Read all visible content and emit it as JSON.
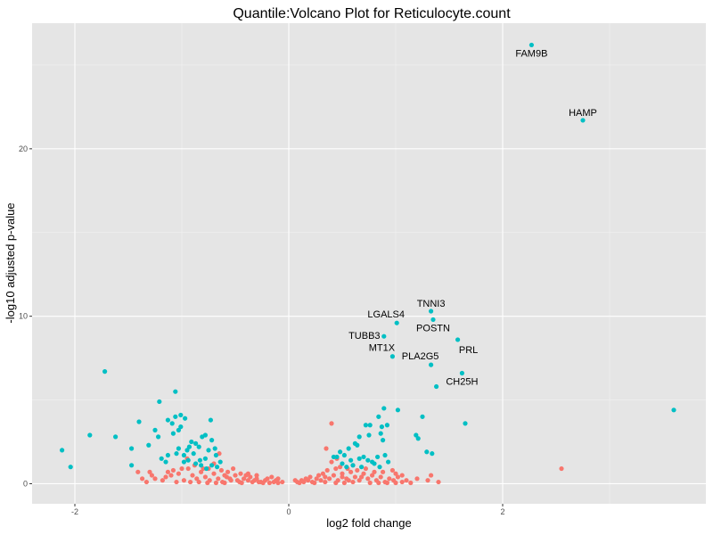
{
  "chart_data": {
    "type": "scatter",
    "title": "Quantile:Volcano Plot for Reticulocyte.count",
    "xlabel": "log2 fold change",
    "ylabel": "-log10 adjusted p-value",
    "xlim": [
      -2.4,
      3.9
    ],
    "ylim": [
      -1.2,
      27.5
    ],
    "x_ticks": [
      -2,
      0,
      2
    ],
    "x_tick_labels": [
      "-2",
      "0",
      "2"
    ],
    "y_ticks": [
      0,
      10,
      20
    ],
    "y_tick_labels": [
      "0",
      "10",
      "20"
    ],
    "grid": true,
    "legend": "none",
    "colors": {
      "panel_background": "#e5e5e5",
      "grid_major": "#ffffff",
      "grid_minor": "#f2f2f2",
      "not_significant": "#f8766d",
      "significant": "#00bfc4",
      "tick": "#333333"
    },
    "series": [
      {
        "group": "significant",
        "color": "#00bfc4",
        "points": [
          [
            2.27,
            26.2
          ],
          [
            2.75,
            21.7
          ],
          [
            1.33,
            10.3
          ],
          [
            1.35,
            9.8
          ],
          [
            1.01,
            9.6
          ],
          [
            0.89,
            8.8
          ],
          [
            1.58,
            8.6
          ],
          [
            0.97,
            7.6
          ],
          [
            1.33,
            7.1
          ],
          [
            1.62,
            6.6
          ],
          [
            1.38,
            5.8
          ],
          [
            1.65,
            3.6
          ],
          [
            3.6,
            4.4
          ],
          [
            1.25,
            4.0
          ],
          [
            1.19,
            2.9
          ],
          [
            1.21,
            2.7
          ],
          [
            1.29,
            1.9
          ],
          [
            1.34,
            1.8
          ],
          [
            1.02,
            4.4
          ],
          [
            0.89,
            4.5
          ],
          [
            0.84,
            4.0
          ],
          [
            0.87,
            3.4
          ],
          [
            0.76,
            3.5
          ],
          [
            0.72,
            3.5
          ],
          [
            0.92,
            3.5
          ],
          [
            0.86,
            3.0
          ],
          [
            0.88,
            2.6
          ],
          [
            0.75,
            2.9
          ],
          [
            0.66,
            2.8
          ],
          [
            0.9,
            1.7
          ],
          [
            0.93,
            1.3
          ],
          [
            0.62,
            2.4
          ],
          [
            0.64,
            2.3
          ],
          [
            0.56,
            2.1
          ],
          [
            0.52,
            1.7
          ],
          [
            0.58,
            1.4
          ],
          [
            0.48,
            1.9
          ],
          [
            0.45,
            1.6
          ],
          [
            0.66,
            1.5
          ],
          [
            0.7,
            1.6
          ],
          [
            0.78,
            1.3
          ],
          [
            0.8,
            1.2
          ],
          [
            0.85,
            1.0
          ],
          [
            0.74,
            1.4
          ],
          [
            0.42,
            1.6
          ],
          [
            0.5,
            1.2
          ],
          [
            0.54,
            1.0
          ],
          [
            0.6,
            1.1
          ],
          [
            0.83,
            1.6
          ],
          [
            0.68,
            1.0
          ],
          [
            -1.06,
            5.5
          ],
          [
            -1.21,
            4.9
          ],
          [
            -1.72,
            6.7
          ],
          [
            -1.01,
            4.1
          ],
          [
            -1.06,
            4.0
          ],
          [
            -0.97,
            3.9
          ],
          [
            -1.09,
            3.6
          ],
          [
            -1.13,
            3.8
          ],
          [
            -0.73,
            3.8
          ],
          [
            -1.4,
            3.7
          ],
          [
            -1.25,
            3.2
          ],
          [
            -1.03,
            3.2
          ],
          [
            -1.01,
            3.4
          ],
          [
            -1.08,
            3.0
          ],
          [
            -0.78,
            2.9
          ],
          [
            -0.81,
            2.8
          ],
          [
            -0.91,
            2.5
          ],
          [
            -0.87,
            2.4
          ],
          [
            -0.84,
            2.2
          ],
          [
            -0.93,
            2.2
          ],
          [
            -0.95,
            2.0
          ],
          [
            -1.03,
            2.1
          ],
          [
            -0.98,
            1.7
          ],
          [
            -1.05,
            1.8
          ],
          [
            -1.13,
            1.7
          ],
          [
            -1.31,
            2.3
          ],
          [
            -1.47,
            2.1
          ],
          [
            -1.22,
            2.8
          ],
          [
            -0.75,
            2.0
          ],
          [
            -0.68,
            1.7
          ],
          [
            -0.64,
            1.3
          ],
          [
            -0.69,
            2.1
          ],
          [
            -0.72,
            2.6
          ],
          [
            -0.78,
            1.5
          ],
          [
            -0.83,
            1.4
          ],
          [
            -0.89,
            1.8
          ],
          [
            -0.94,
            1.4
          ],
          [
            -0.98,
            1.3
          ],
          [
            -1.15,
            1.3
          ],
          [
            -1.19,
            1.5
          ],
          [
            -0.67,
            1.0
          ],
          [
            -0.72,
            1.1
          ],
          [
            -0.77,
            0.9
          ],
          [
            -0.82,
            1.1
          ],
          [
            -0.87,
            1.2
          ],
          [
            -1.86,
            2.9
          ],
          [
            -1.62,
            2.8
          ],
          [
            -2.12,
            2.0
          ],
          [
            -2.04,
            1.0
          ],
          [
            -1.47,
            1.1
          ]
        ],
        "labels": [
          {
            "text": "FAM9B",
            "x": 2.27,
            "y": 26.2,
            "anchor": "below"
          },
          {
            "text": "HAMP",
            "x": 2.75,
            "y": 21.7,
            "anchor": "above"
          },
          {
            "text": "TNNI3",
            "x": 1.33,
            "y": 10.3,
            "anchor": "above"
          },
          {
            "text": "LGALS4",
            "x": 1.01,
            "y": 9.6,
            "anchor": "above-left"
          },
          {
            "text": "POSTN",
            "x": 1.35,
            "y": 9.8,
            "anchor": "below"
          },
          {
            "text": "TUBB3",
            "x": 0.89,
            "y": 8.8,
            "anchor": "left"
          },
          {
            "text": "PRL",
            "x": 1.58,
            "y": 8.6,
            "anchor": "below-right"
          },
          {
            "text": "MT1X",
            "x": 0.97,
            "y": 7.6,
            "anchor": "above-left"
          },
          {
            "text": "PLA2G5",
            "x": 1.33,
            "y": 7.1,
            "anchor": "above-left"
          },
          {
            "text": "CH25H",
            "x": 1.62,
            "y": 6.6,
            "anchor": "below"
          }
        ]
      },
      {
        "group": "not significant",
        "color": "#f8766d",
        "points": [
          [
            -1.25,
            0.3
          ],
          [
            -1.41,
            0.7
          ],
          [
            -1.33,
            0.1
          ],
          [
            -1.28,
            0.5
          ],
          [
            -1.15,
            0.4
          ],
          [
            -1.08,
            0.8
          ],
          [
            -1.03,
            0.6
          ],
          [
            -0.98,
            0.2
          ],
          [
            -0.94,
            0.9
          ],
          [
            -0.9,
            0.5
          ],
          [
            -0.86,
            0.3
          ],
          [
            -0.82,
            0.7
          ],
          [
            -0.78,
            0.4
          ],
          [
            -0.74,
            0.2
          ],
          [
            -0.7,
            0.6
          ],
          [
            -0.66,
            0.3
          ],
          [
            -0.62,
            0.1
          ],
          [
            -0.58,
            0.4
          ],
          [
            -0.54,
            0.2
          ],
          [
            -0.5,
            0.5
          ],
          [
            -0.46,
            0.1
          ],
          [
            -0.42,
            0.3
          ],
          [
            -0.38,
            0.2
          ],
          [
            -0.34,
            0.1
          ],
          [
            -0.3,
            0.3
          ],
          [
            -0.26,
            0.1
          ],
          [
            -0.22,
            0.2
          ],
          [
            -0.18,
            0.05
          ],
          [
            -0.14,
            0.1
          ],
          [
            -0.1,
            0.05
          ],
          [
            -0.75,
            0.9
          ],
          [
            -0.7,
            1.2
          ],
          [
            -0.63,
            0.8
          ],
          [
            -0.57,
            0.7
          ],
          [
            -0.52,
            0.9
          ],
          [
            -0.65,
            1.8
          ],
          [
            -0.45,
            0.6
          ],
          [
            -0.4,
            0.5
          ],
          [
            -0.95,
            1.5
          ],
          [
            -0.88,
            1.1
          ],
          [
            -1.0,
            0.9
          ],
          [
            -1.13,
            0.7
          ],
          [
            -0.8,
            0.9
          ],
          [
            -0.6,
            0.5
          ],
          [
            -0.55,
            0.3
          ],
          [
            -0.48,
            0.2
          ],
          [
            -0.36,
            0.4
          ],
          [
            -0.32,
            0.2
          ],
          [
            -0.28,
            0.1
          ],
          [
            -0.2,
            0.3
          ],
          [
            -1.18,
            0.2
          ],
          [
            -1.05,
            0.1
          ],
          [
            -0.92,
            0.1
          ],
          [
            -0.84,
            0.1
          ],
          [
            -0.76,
            0.05
          ],
          [
            -0.68,
            0.05
          ],
          [
            -0.6,
            0.05
          ],
          [
            -0.44,
            0.05
          ],
          [
            -0.24,
            0.05
          ],
          [
            -0.12,
            0.2
          ],
          [
            0.1,
            0.05
          ],
          [
            0.14,
            0.1
          ],
          [
            0.18,
            0.2
          ],
          [
            0.22,
            0.1
          ],
          [
            0.26,
            0.3
          ],
          [
            0.3,
            0.2
          ],
          [
            0.34,
            0.4
          ],
          [
            0.38,
            0.3
          ],
          [
            0.42,
            0.5
          ],
          [
            0.46,
            0.2
          ],
          [
            0.5,
            0.6
          ],
          [
            0.54,
            0.3
          ],
          [
            0.58,
            0.7
          ],
          [
            0.62,
            0.4
          ],
          [
            0.66,
            0.2
          ],
          [
            0.7,
            0.6
          ],
          [
            0.74,
            0.3
          ],
          [
            0.78,
            0.5
          ],
          [
            0.82,
            0.2
          ],
          [
            0.86,
            0.4
          ],
          [
            0.9,
            0.1
          ],
          [
            0.94,
            0.3
          ],
          [
            0.98,
            0.2
          ],
          [
            1.02,
            0.4
          ],
          [
            1.06,
            0.1
          ],
          [
            1.1,
            0.2
          ],
          [
            1.14,
            0.05
          ],
          [
            0.4,
            1.3
          ],
          [
            0.44,
            0.9
          ],
          [
            0.48,
            1.0
          ],
          [
            0.36,
            0.8
          ],
          [
            0.32,
            0.6
          ],
          [
            0.28,
            0.5
          ],
          [
            0.55,
            0.9
          ],
          [
            0.6,
            1.1
          ],
          [
            0.45,
            1.5
          ],
          [
            0.5,
            0.4
          ],
          [
            0.56,
            0.2
          ],
          [
            0.64,
            0.8
          ],
          [
            0.72,
            0.9
          ],
          [
            0.8,
            0.7
          ],
          [
            0.68,
            0.4
          ],
          [
            0.2,
            0.4
          ],
          [
            0.16,
            0.3
          ],
          [
            0.12,
            0.2
          ],
          [
            0.08,
            0.1
          ],
          [
            0.24,
            0.05
          ],
          [
            0.34,
            0.1
          ],
          [
            0.44,
            0.05
          ],
          [
            0.52,
            0.05
          ],
          [
            0.6,
            0.1
          ],
          [
            0.76,
            0.05
          ],
          [
            0.84,
            0.05
          ],
          [
            0.92,
            0.05
          ],
          [
            1.0,
            0.05
          ],
          [
            0.4,
            3.6
          ],
          [
            0.35,
            2.1
          ],
          [
            1.2,
            0.3
          ],
          [
            1.3,
            0.2
          ],
          [
            1.33,
            0.5
          ],
          [
            1.4,
            0.1
          ],
          [
            0.97,
            0.8
          ],
          [
            1.0,
            0.6
          ],
          [
            1.06,
            0.5
          ],
          [
            2.55,
            0.9
          ],
          [
            -0.1,
            0.3
          ],
          [
            -0.3,
            0.5
          ],
          [
            -0.38,
            0.6
          ],
          [
            -0.16,
            0.4
          ],
          [
            0.06,
            0.2
          ],
          [
            -0.06,
            0.1
          ],
          [
            -1.3,
            0.7
          ],
          [
            -1.37,
            0.3
          ],
          [
            -1.1,
            0.5
          ],
          [
            0.88,
            0.7
          ]
        ]
      }
    ]
  }
}
